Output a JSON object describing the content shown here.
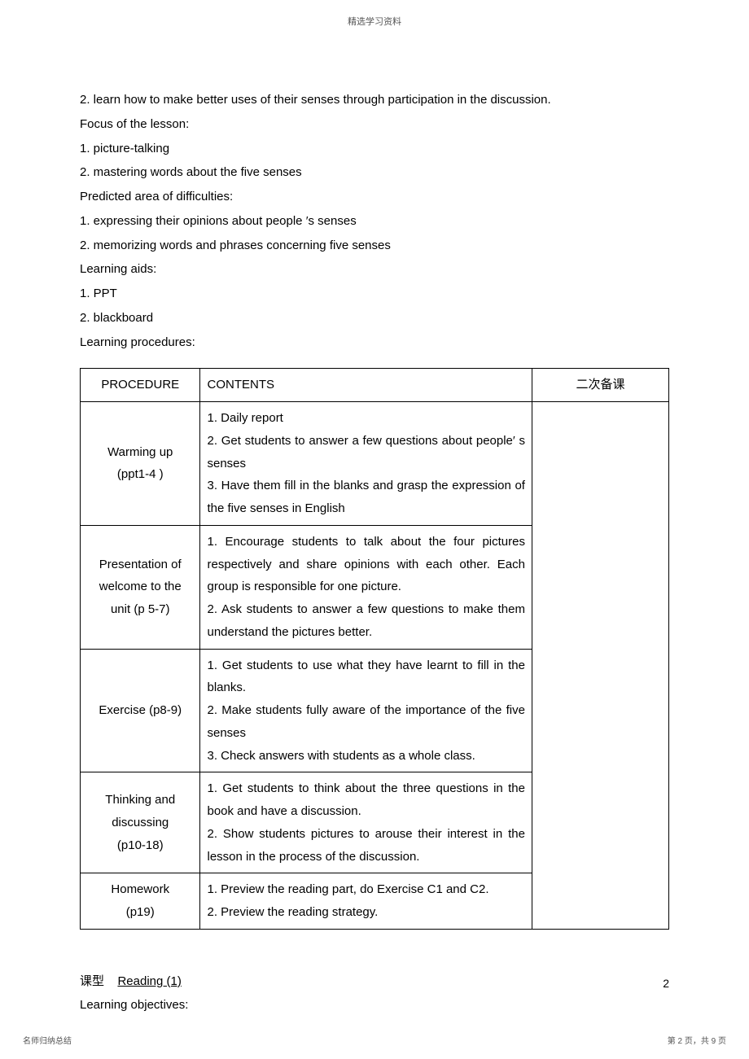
{
  "header": {
    "title": "精选学习资料"
  },
  "intro": {
    "lines": [
      "2. learn how to make better uses of their senses through participation in the discussion.",
      "Focus of the lesson:",
      "1. picture-talking",
      "2. mastering words about the five senses",
      "Predicted area of difficulties:",
      "1. expressing their opinions about people ′s senses",
      "2. memorizing words and phrases concerning five senses",
      "Learning aids:",
      "1. PPT",
      "2. blackboard",
      "Learning procedures:"
    ]
  },
  "table": {
    "headers": {
      "col1": "PROCEDURE",
      "col2": "CONTENTS",
      "col3": "二次备课"
    },
    "rows": [
      {
        "procedure": "Warming up\n(ppt1-4 )",
        "contents": "1. Daily report\n2. Get students to answer a few questions about people′ s senses\n3. Have them fill in the blanks and grasp the expression of the five senses in English"
      },
      {
        "procedure": "Presentation of\nwelcome to the\nunit (p 5-7)",
        "contents": "1. Encourage students to talk about the four pictures respectively and share opinions with each other. Each group is responsible for one picture.\n2. Ask students to answer a few questions to make them understand the pictures better."
      },
      {
        "procedure": "Exercise (p8-9)",
        "contents": "1. Get students to use what they have learnt to fill in the blanks.\n2. Make students fully aware of the importance of the five senses\n3. Check answers with students as a whole class."
      },
      {
        "procedure": "Thinking and\ndiscussing\n(p10-18)",
        "contents": "1. Get students to think about the three questions in the book and have a discussion.\n2. Show students pictures to arouse their interest in the lesson in the process of the discussion."
      },
      {
        "procedure": "Homework\n(p19)",
        "contents": "1. Preview the reading part, do Exercise C1 and C2.\n2. Preview the reading strategy."
      }
    ],
    "notes": ""
  },
  "lesson": {
    "label": "课型",
    "value": "Reading (1)",
    "objectives_label": "Learning objectives:"
  },
  "pageNumber": "2",
  "footer": {
    "left": "名师归纳总结",
    "right": "第 2 页，共 9 页"
  }
}
